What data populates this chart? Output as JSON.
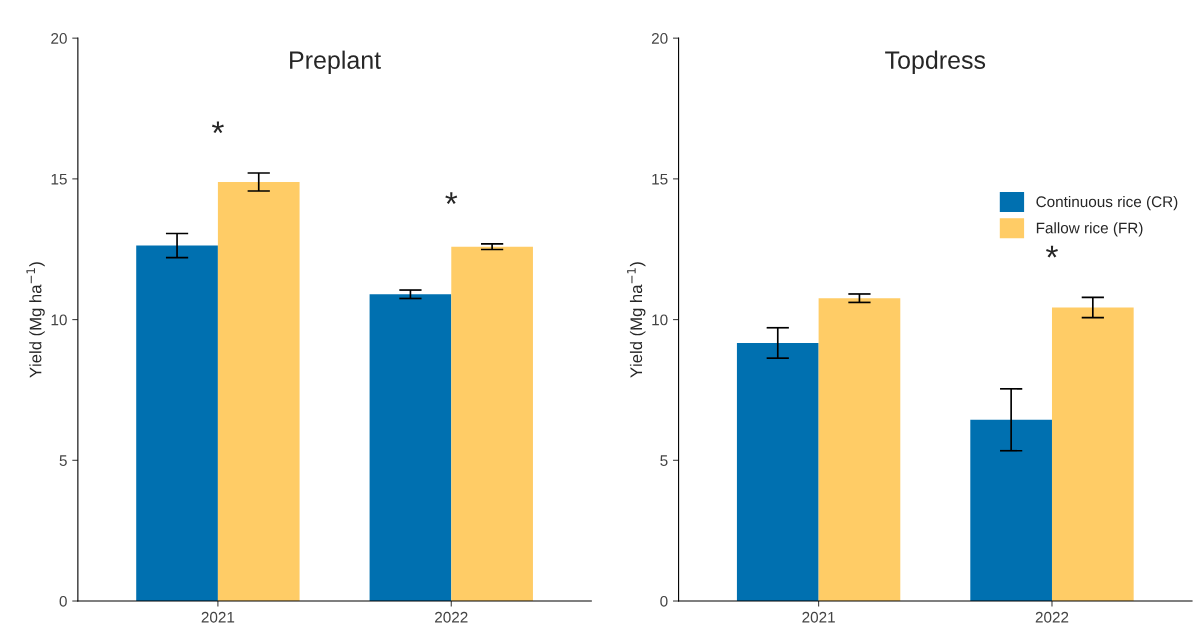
{
  "chart_data": [
    {
      "type": "bar",
      "title": "Preplant",
      "ylabel": "Yield (Mg ha$^{−1}$)",
      "categories": [
        "2021",
        "2022"
      ],
      "ylim": [
        0,
        20
      ],
      "yticks": [
        0,
        5,
        10,
        15,
        20
      ],
      "grid": false,
      "legend": false,
      "series": [
        {
          "color": "#0070b0",
          "values": [
            12.63,
            10.9
          ],
          "errors": [
            0.43,
            0.15
          ]
        },
        {
          "color": "#ffcc66",
          "values": [
            14.89,
            12.59
          ],
          "errors": [
            0.32,
            0.1
          ],
          "value_labels": [
            "*",
            "*"
          ]
        }
      ]
    },
    {
      "type": "bar",
      "title": "Topdress",
      "ylabel": "Yield (Mg ha$^{−1}$)",
      "categories": [
        "2021",
        "2022"
      ],
      "ylim": [
        0,
        20
      ],
      "yticks": [
        0,
        5,
        10,
        15,
        20
      ],
      "grid": false,
      "legend": "right",
      "series": [
        {
          "name": "Continuous rice (CR)",
          "color": "#0070b0",
          "values": [
            9.17,
            6.44
          ],
          "errors": [
            0.54,
            1.1
          ]
        },
        {
          "name": "Fallow rice (FR)",
          "color": "#ffcc66",
          "values": [
            10.76,
            10.43
          ],
          "errors": [
            0.15,
            0.36
          ],
          "value_labels": [
            null,
            "*"
          ]
        }
      ]
    }
  ]
}
